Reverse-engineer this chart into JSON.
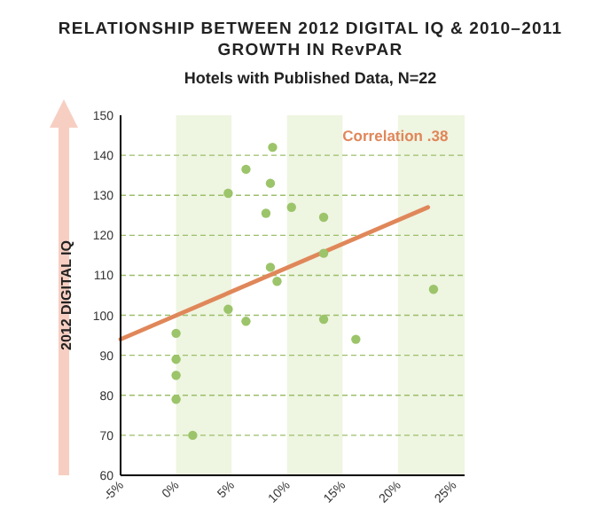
{
  "chart_data": {
    "type": "scatter",
    "title": "RELATIONSHIP BETWEEN 2012 DIGITAL IQ & 2010–2011 GROWTH IN RevPAR",
    "subtitle": "Hotels with Published Data, N=22",
    "ylabel": "2012 DIGITAL IQ",
    "annotations": [
      {
        "text": "Correlation .38",
        "x": 15,
        "y": 143.5
      }
    ],
    "series": [
      {
        "color": "#9cc46a",
        "x": [
          0,
          0,
          0,
          0,
          1.5,
          4.7,
          4.7,
          6.3,
          6.3,
          8.1,
          8.5,
          8.7,
          8.5,
          9.1,
          10.4,
          13.3,
          13.3,
          13.3,
          16.2,
          23.2
        ],
        "values": [
          95.5,
          89,
          85,
          79,
          70,
          130.5,
          101.5,
          136.5,
          98.5,
          125.5,
          133,
          142,
          112,
          108.5,
          127,
          124.5,
          115.5,
          99,
          94,
          106.5
        ]
      },
      {
        "type": "line",
        "color": "#e0875a",
        "x": [
          -5,
          22.7
        ],
        "values": [
          94,
          127
        ]
      }
    ],
    "xlim": [
      -5,
      26
    ],
    "xticks": [
      {
        "value": -5,
        "label": "-5%"
      },
      {
        "value": 0,
        "label": "0%"
      },
      {
        "value": 5,
        "label": "5%"
      },
      {
        "value": 10,
        "label": "10%"
      },
      {
        "value": 15,
        "label": "15%"
      },
      {
        "value": 20,
        "label": "20%"
      },
      {
        "value": 25,
        "label": "25%"
      }
    ],
    "ylim": [
      60,
      150
    ],
    "yticks": [
      60,
      70,
      80,
      90,
      100,
      110,
      120,
      130,
      140,
      150
    ],
    "bands": [
      {
        "axis": "x",
        "from": 0,
        "to": 5,
        "color": "#eef5e1"
      },
      {
        "axis": "x",
        "from": 10,
        "to": 15,
        "color": "#eef5e1"
      },
      {
        "axis": "x",
        "from": 20,
        "to": 26,
        "color": "#eef5e1"
      }
    ],
    "grid": "y"
  }
}
